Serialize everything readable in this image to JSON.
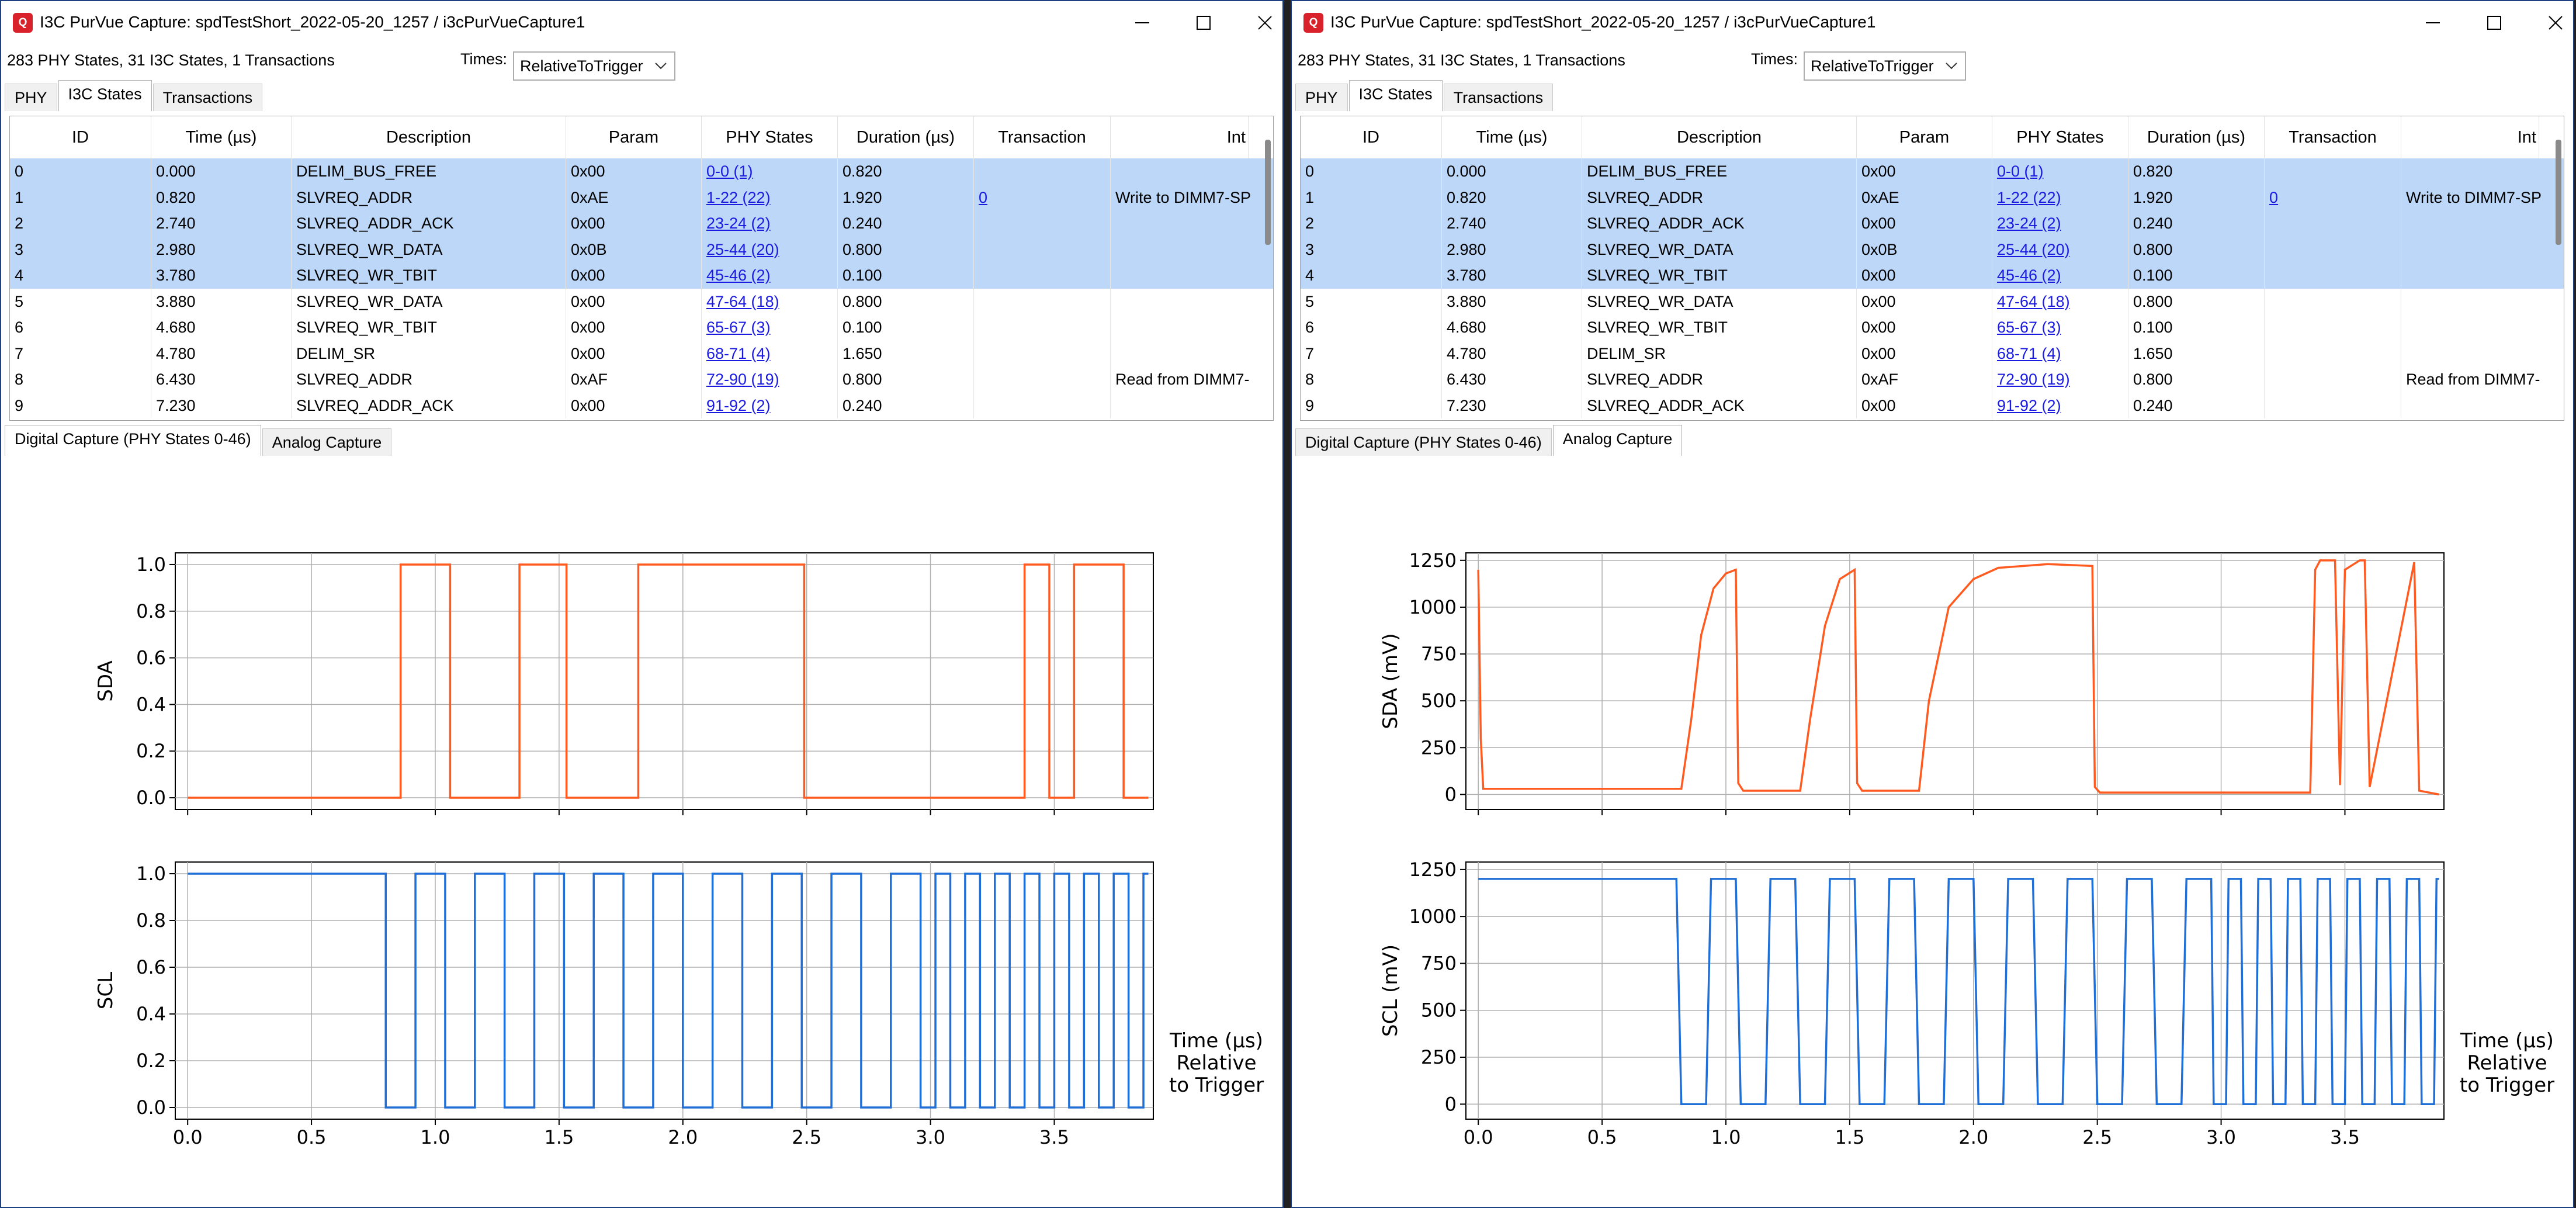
{
  "windows": [
    {
      "title": "I3C PurVue Capture: spdTestShort_2022-05-20_1257 / i3cPurVueCapture1",
      "summary": "283 PHY States, 31 I3C States, 1 Transactions",
      "times_label": "Times:",
      "times_value": "RelativeToTrigger",
      "top_tabs": [
        "PHY",
        "I3C States",
        "Transactions"
      ],
      "active_top_tab": 1,
      "columns": [
        "ID",
        "Time (µs)",
        "Description",
        "Param",
        "PHY States",
        "Duration (µs)",
        "Transaction",
        "Int"
      ],
      "rows": [
        [
          "0",
          "0.000",
          "DELIM_BUS_FREE",
          "0x00",
          "0-0 (1)",
          "0.820",
          "",
          ""
        ],
        [
          "1",
          "0.820",
          "SLVREQ_ADDR",
          "0xAE",
          "1-22 (22)",
          "1.920",
          "0",
          "Write to DIMM7-SP"
        ],
        [
          "2",
          "2.740",
          "SLVREQ_ADDR_ACK",
          "0x00",
          "23-24 (2)",
          "0.240",
          "",
          ""
        ],
        [
          "3",
          "2.980",
          "SLVREQ_WR_DATA",
          "0x0B",
          "25-44 (20)",
          "0.800",
          "",
          ""
        ],
        [
          "4",
          "3.780",
          "SLVREQ_WR_TBIT",
          "0x00",
          "45-46 (2)",
          "0.100",
          "",
          ""
        ],
        [
          "5",
          "3.880",
          "SLVREQ_WR_DATA",
          "0x00",
          "47-64 (18)",
          "0.800",
          "",
          ""
        ],
        [
          "6",
          "4.680",
          "SLVREQ_WR_TBIT",
          "0x00",
          "65-67 (3)",
          "0.100",
          "",
          ""
        ],
        [
          "7",
          "4.780",
          "DELIM_SR",
          "0x00",
          "68-71 (4)",
          "1.650",
          "",
          ""
        ],
        [
          "8",
          "6.430",
          "SLVREQ_ADDR",
          "0xAF",
          "72-90 (19)",
          "0.800",
          "",
          "Read from DIMM7-"
        ],
        [
          "9",
          "7.230",
          "SLVREQ_ADDR_ACK",
          "0x00",
          "91-92 (2)",
          "0.240",
          "",
          ""
        ]
      ],
      "selected_rows": [
        0,
        1,
        2,
        3,
        4
      ],
      "bottom_tabs": [
        "Digital Capture (PHY States 0-46)",
        "Analog Capture"
      ],
      "active_bottom_tab": 0
    },
    {
      "title": "I3C PurVue Capture: spdTestShort_2022-05-20_1257 / i3cPurVueCapture1",
      "summary": "283 PHY States, 31 I3C States, 1 Transactions",
      "times_label": "Times:",
      "times_value": "RelativeToTrigger",
      "top_tabs": [
        "PHY",
        "I3C States",
        "Transactions"
      ],
      "active_top_tab": 1,
      "columns": [
        "ID",
        "Time (µs)",
        "Description",
        "Param",
        "PHY States",
        "Duration (µs)",
        "Transaction",
        "Int"
      ],
      "rows": [
        [
          "0",
          "0.000",
          "DELIM_BUS_FREE",
          "0x00",
          "0-0 (1)",
          "0.820",
          "",
          ""
        ],
        [
          "1",
          "0.820",
          "SLVREQ_ADDR",
          "0xAE",
          "1-22 (22)",
          "1.920",
          "0",
          "Write to DIMM7-SP"
        ],
        [
          "2",
          "2.740",
          "SLVREQ_ADDR_ACK",
          "0x00",
          "23-24 (2)",
          "0.240",
          "",
          ""
        ],
        [
          "3",
          "2.980",
          "SLVREQ_WR_DATA",
          "0x0B",
          "25-44 (20)",
          "0.800",
          "",
          ""
        ],
        [
          "4",
          "3.780",
          "SLVREQ_WR_TBIT",
          "0x00",
          "45-46 (2)",
          "0.100",
          "",
          ""
        ],
        [
          "5",
          "3.880",
          "SLVREQ_WR_DATA",
          "0x00",
          "47-64 (18)",
          "0.800",
          "",
          ""
        ],
        [
          "6",
          "4.680",
          "SLVREQ_WR_TBIT",
          "0x00",
          "65-67 (3)",
          "0.100",
          "",
          ""
        ],
        [
          "7",
          "4.780",
          "DELIM_SR",
          "0x00",
          "68-71 (4)",
          "1.650",
          "",
          ""
        ],
        [
          "8",
          "6.430",
          "SLVREQ_ADDR",
          "0xAF",
          "72-90 (19)",
          "0.800",
          "",
          "Read from DIMM7-"
        ],
        [
          "9",
          "7.230",
          "SLVREQ_ADDR_ACK",
          "0x00",
          "91-92 (2)",
          "0.240",
          "",
          ""
        ]
      ],
      "selected_rows": [
        0,
        1,
        2,
        3,
        4
      ],
      "bottom_tabs": [
        "Digital Capture (PHY States 0-46)",
        "Analog Capture"
      ],
      "active_bottom_tab": 1
    }
  ],
  "link_columns": [
    4,
    6
  ],
  "colors": {
    "sda": "#ff5a1f",
    "scl": "#1f6fd6",
    "selected_row": "#bcd7f8",
    "link": "#1a1ae0"
  },
  "chart_data": [
    {
      "type": "line",
      "window": 0,
      "xlabel": "Time (µs)\nRelative\nto Trigger",
      "xlim": [
        -0.05,
        3.9
      ],
      "xticks": [
        "0.0",
        "0.5",
        "1.0",
        "1.5",
        "2.0",
        "2.5",
        "3.0",
        "3.5"
      ],
      "grid": true,
      "panels": [
        {
          "ylabel": "SDA",
          "ylim": [
            -0.05,
            1.05
          ],
          "yticks": [
            "0.0",
            "0.2",
            "0.4",
            "0.6",
            "0.8",
            "1.0"
          ],
          "series": [
            {
              "step": true,
              "x": [
                0.0,
                0.86,
                1.06,
                1.34,
                1.53,
                1.82,
                2.49,
                3.38,
                3.48,
                3.58,
                3.78,
                3.88
              ],
              "y": [
                0,
                1,
                0,
                1,
                0,
                1,
                0,
                1,
                0,
                1,
                0,
                0
              ]
            }
          ]
        },
        {
          "ylabel": "SCL",
          "ylim": [
            -0.05,
            1.05
          ],
          "yticks": [
            "0.0",
            "0.2",
            "0.4",
            "0.6",
            "0.8",
            "1.0"
          ],
          "series": [
            {
              "step": true,
              "x": [
                0.0,
                0.8,
                0.92,
                1.04,
                1.16,
                1.28,
                1.4,
                1.52,
                1.64,
                1.76,
                1.88,
                2.0,
                2.12,
                2.24,
                2.36,
                2.48,
                2.6,
                2.72,
                2.84,
                2.96,
                3.02,
                3.08,
                3.14,
                3.2,
                3.26,
                3.32,
                3.38,
                3.44,
                3.5,
                3.56,
                3.62,
                3.68,
                3.74,
                3.8,
                3.86,
                3.88
              ],
              "y": [
                1,
                0,
                1,
                0,
                1,
                0,
                1,
                0,
                1,
                0,
                1,
                0,
                1,
                0,
                1,
                0,
                1,
                0,
                1,
                0,
                1,
                0,
                1,
                0,
                1,
                0,
                1,
                0,
                1,
                0,
                1,
                0,
                1,
                0,
                1,
                1
              ]
            }
          ]
        }
      ]
    },
    {
      "type": "line",
      "window": 1,
      "xlabel": "Time (µs)\nRelative\nto Trigger",
      "xlim": [
        -0.05,
        3.9
      ],
      "xticks": [
        "0.0",
        "0.5",
        "1.0",
        "1.5",
        "2.0",
        "2.5",
        "3.0",
        "3.5"
      ],
      "grid": true,
      "panels": [
        {
          "ylabel": "SDA (mV)",
          "ylim": [
            -80,
            1290
          ],
          "yticks": [
            "0",
            "250",
            "500",
            "750",
            "1000",
            "1250"
          ],
          "series": [
            {
              "step": false,
              "x": [
                0.0,
                0.01,
                0.02,
                0.82,
                0.86,
                0.9,
                0.95,
                1.0,
                1.04,
                1.05,
                1.07,
                1.3,
                1.34,
                1.4,
                1.46,
                1.52,
                1.53,
                1.55,
                1.78,
                1.82,
                1.9,
                2.0,
                2.1,
                2.3,
                2.48,
                2.49,
                2.51,
                3.36,
                3.38,
                3.4,
                3.46,
                3.48,
                3.5,
                3.56,
                3.58,
                3.6,
                3.78,
                3.8,
                3.88
              ],
              "y": [
                1200,
                300,
                30,
                30,
                400,
                850,
                1100,
                1180,
                1200,
                60,
                20,
                20,
                400,
                900,
                1150,
                1200,
                60,
                20,
                20,
                500,
                1000,
                1150,
                1210,
                1230,
                1220,
                40,
                10,
                10,
                1200,
                1250,
                1250,
                50,
                1200,
                1250,
                1250,
                40,
                1240,
                20,
                0
              ]
            }
          ]
        },
        {
          "ylabel": "SCL (mV)",
          "ylim": [
            -80,
            1290
          ],
          "yticks": [
            "0",
            "250",
            "500",
            "750",
            "1000",
            "1250"
          ],
          "series": [
            {
              "step": false,
              "x": [
                0.0,
                0.8,
                0.82,
                0.92,
                0.94,
                1.04,
                1.06,
                1.16,
                1.18,
                1.28,
                1.3,
                1.4,
                1.42,
                1.52,
                1.54,
                1.64,
                1.66,
                1.76,
                1.78,
                1.88,
                1.9,
                2.0,
                2.02,
                2.12,
                2.14,
                2.24,
                2.26,
                2.36,
                2.38,
                2.48,
                2.5,
                2.6,
                2.62,
                2.72,
                2.74,
                2.84,
                2.86,
                2.96,
                2.97,
                3.02,
                3.03,
                3.08,
                3.09,
                3.14,
                3.15,
                3.2,
                3.21,
                3.26,
                3.27,
                3.32,
                3.33,
                3.38,
                3.39,
                3.44,
                3.45,
                3.5,
                3.51,
                3.56,
                3.57,
                3.62,
                3.63,
                3.68,
                3.69,
                3.74,
                3.75,
                3.8,
                3.81,
                3.86,
                3.87,
                3.88
              ],
              "y": [
                1200,
                1200,
                0,
                0,
                1200,
                1200,
                0,
                0,
                1200,
                1200,
                0,
                0,
                1200,
                1200,
                0,
                0,
                1200,
                1200,
                0,
                0,
                1200,
                1200,
                0,
                0,
                1200,
                1200,
                0,
                0,
                1200,
                1200,
                0,
                0,
                1200,
                1200,
                0,
                0,
                1200,
                1200,
                0,
                0,
                1200,
                1200,
                0,
                0,
                1200,
                1200,
                0,
                0,
                1200,
                1200,
                0,
                0,
                1200,
                1200,
                0,
                0,
                1200,
                1200,
                0,
                0,
                1200,
                1200,
                0,
                0,
                1200,
                1200,
                0,
                0,
                1200,
                1200
              ]
            }
          ]
        }
      ]
    }
  ]
}
